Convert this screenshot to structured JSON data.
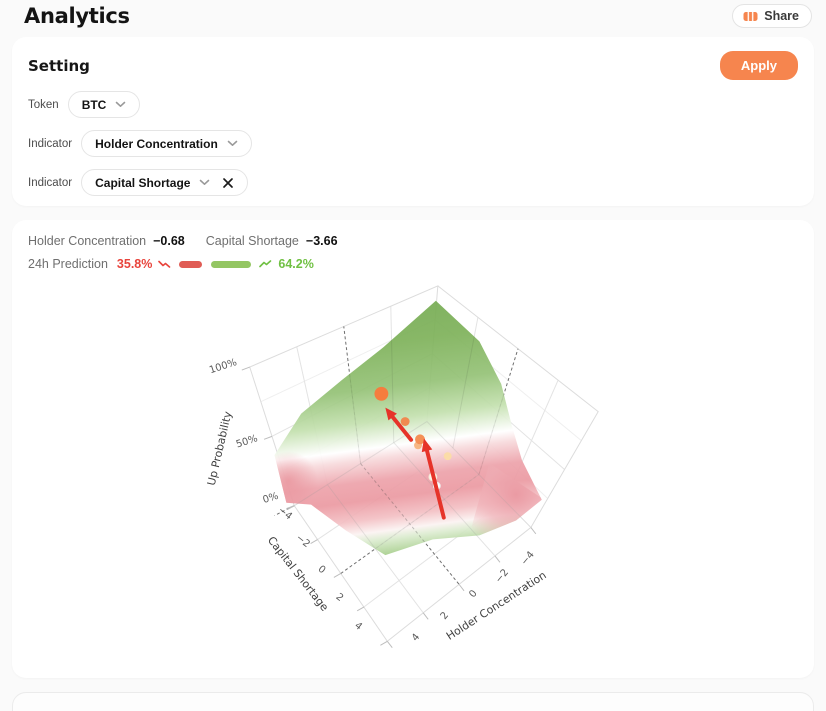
{
  "page": {
    "title": "Analytics"
  },
  "header": {
    "share_label": "Share"
  },
  "setting": {
    "title": "Setting",
    "apply_label": "Apply",
    "accent_color": "#f6854e",
    "rows": [
      {
        "label": "Token",
        "value": "BTC",
        "removable": false
      },
      {
        "label": "Indicator",
        "value": "Holder Concentration",
        "removable": false
      },
      {
        "label": "Indicator",
        "value": "Capital Shortage",
        "removable": true
      }
    ]
  },
  "metrics": {
    "indicator1_label": "Holder Concentration",
    "indicator1_value": "−0.68",
    "indicator2_label": "Capital Shortage",
    "indicator2_value": "−3.66"
  },
  "prediction": {
    "label": "24h Prediction",
    "down_pct": "35.8%",
    "up_pct": "64.2%",
    "down_value": 35.8,
    "up_value": 64.2,
    "down_color": "#e05c55",
    "up_color": "#94c663"
  },
  "chart_data": {
    "type": "surface-3d",
    "title": "",
    "x_axis": {
      "title": "Holder Concentration",
      "range": [
        -4,
        4
      ],
      "ticks": [
        "4",
        "2",
        "0",
        "−2",
        "−4"
      ]
    },
    "y_axis": {
      "title": "Capital Shortage",
      "range": [
        -4,
        4
      ],
      "ticks": [
        "−4",
        "−2",
        "0",
        "2",
        "4"
      ]
    },
    "z_axis": {
      "title": "Up Probability",
      "range_pct": [
        0,
        100
      ],
      "ticks": [
        "0%",
        "50%",
        "100%"
      ]
    },
    "surface_colors": {
      "high": "#74aa52",
      "mid": "#ffffff",
      "low": "#eda3ab"
    },
    "current_point": {
      "holder_concentration": -0.68,
      "capital_shortage": -3.66,
      "up_probability_pct": 64.2
    },
    "annotations": "trajectory of markers fading white to orange with two red arrows pointing toward higher up-probability region"
  }
}
